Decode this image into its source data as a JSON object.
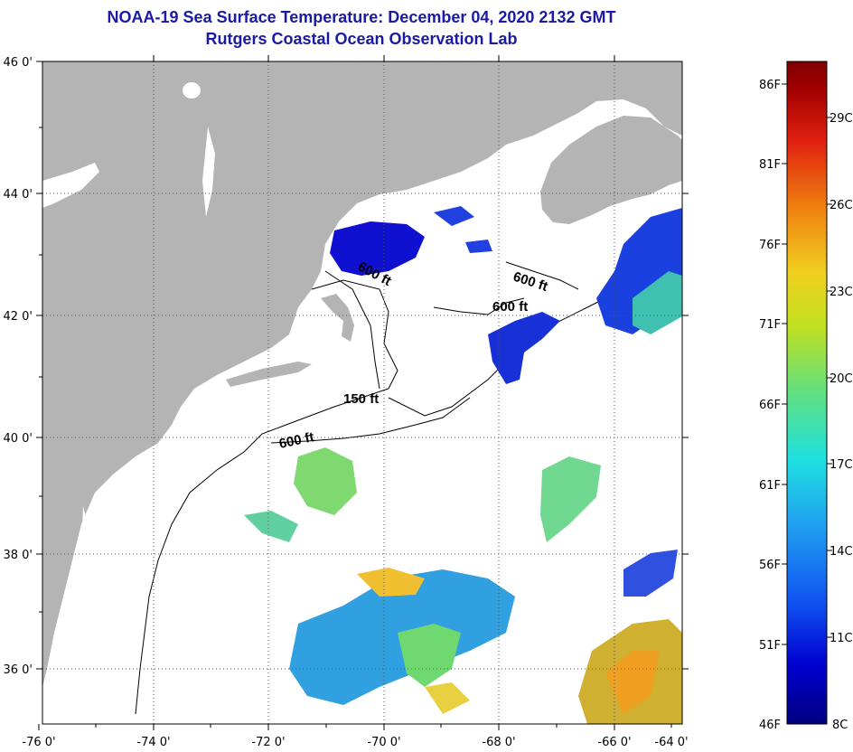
{
  "header": {
    "title": "NOAA-19 Sea Surface Temperature:  December 04, 2020 2132 GMT",
    "subtitle": "Rutgers Coastal Ocean Observation Lab"
  },
  "map": {
    "lat_labels": [
      "46 0'",
      "44 0'",
      "42 0'",
      "40 0'",
      "38 0'",
      "36 0'"
    ],
    "lon_labels": [
      "-76 0'",
      "-74 0'",
      "-72 0'",
      "-70 0'",
      "-68 0'",
      "-66 0'",
      "-64 0'"
    ],
    "contour_labels": [
      "600 ft",
      "600 ft",
      "600 ft",
      "150 ft",
      "600 ft"
    ],
    "colors": {
      "land": "#b4b4b4",
      "ocean": "#ffffff",
      "frame": "#000000"
    }
  },
  "colorbar": {
    "fahrenheit": [
      "86F",
      "81F",
      "76F",
      "71F",
      "66F",
      "61F",
      "56F",
      "51F",
      "46F"
    ],
    "celsius": [
      "29C",
      "26C",
      "23C",
      "20C",
      "17C",
      "14C",
      "11C",
      "8C"
    ],
    "gradient": [
      "#000080",
      "#0000d0",
      "#1050f0",
      "#20a0f0",
      "#20e0e0",
      "#60e080",
      "#c0e020",
      "#f0d020",
      "#f08010",
      "#e02010",
      "#a00000",
      "#800000"
    ]
  }
}
